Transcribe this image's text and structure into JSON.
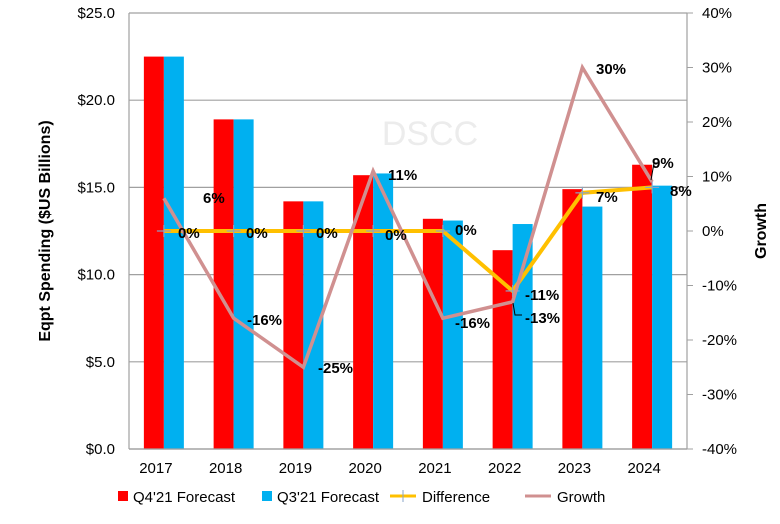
{
  "chart_data": {
    "type": "bar",
    "categories": [
      "2017",
      "2018",
      "2019",
      "2020",
      "2021",
      "2022",
      "2023",
      "2024"
    ],
    "series": [
      {
        "name": "Q4'21 Forecast",
        "type": "bar",
        "axis": "left",
        "color": "#ff0000",
        "values": [
          22.5,
          18.9,
          14.2,
          15.7,
          13.2,
          11.4,
          14.9,
          16.3
        ]
      },
      {
        "name": "Q3'21 Forecast",
        "type": "bar",
        "axis": "left",
        "color": "#00b0f0",
        "values": [
          22.5,
          18.9,
          14.2,
          15.8,
          13.1,
          12.9,
          13.9,
          15.1
        ]
      },
      {
        "name": "Difference",
        "type": "line",
        "axis": "right",
        "color": "#ffc000",
        "values": [
          0,
          0,
          0,
          0,
          0,
          -11,
          7,
          8
        ],
        "labels": [
          "0%",
          "0%",
          "0%",
          "0%",
          "0%",
          "-11%",
          "7%",
          "8%"
        ]
      },
      {
        "name": "Growth",
        "type": "line",
        "axis": "right",
        "color": "#d09090",
        "values": [
          6,
          -16,
          -25,
          11,
          -16,
          -13,
          30,
          9
        ],
        "labels": [
          "6%",
          "-16%",
          "-25%",
          "11%",
          "-16%",
          "-13%",
          "30%",
          "9%"
        ]
      }
    ],
    "ylabel": "Eqpt Spending ($US Billions)",
    "y2label": "Growth",
    "ylim": [
      0,
      25
    ],
    "y2lim": [
      -40,
      40
    ],
    "yticks": [
      "$0.0",
      "$5.0",
      "$10.0",
      "$15.0",
      "$20.0",
      "$25.0"
    ],
    "y2ticks": [
      "-40%",
      "-30%",
      "-20%",
      "-10%",
      "0%",
      "10%",
      "20%",
      "30%",
      "40%"
    ],
    "grid": true,
    "legend_position": "bottom",
    "watermark": "DSCC"
  }
}
